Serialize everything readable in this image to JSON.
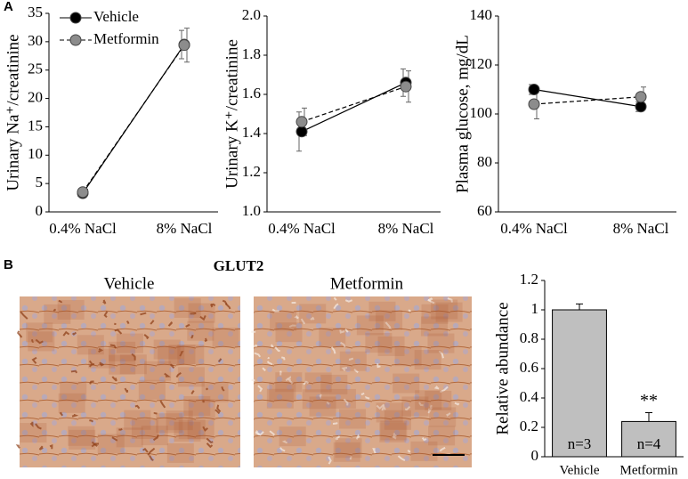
{
  "panels": {
    "a": "A",
    "b": "B"
  },
  "images": {
    "title": "GLUT2",
    "captions": [
      "Vehicle",
      "Metformin"
    ]
  },
  "chart_data": [
    {
      "type": "line",
      "ylabel": "Urinary Na⁺/creatinine",
      "categories": [
        "0.4% NaCl",
        "8% NaCl"
      ],
      "series": [
        {
          "name": "Vehicle",
          "color": "#000000",
          "line_style": "solid",
          "values": [
            3.3,
            29.5
          ],
          "errors": [
            0.5,
            2.5
          ]
        },
        {
          "name": "Metformin",
          "color": "#8c8c8c",
          "line_style": "dashed",
          "values": [
            3.5,
            29.4
          ],
          "errors": [
            0.5,
            3.0
          ]
        }
      ],
      "ylim": [
        0,
        35
      ],
      "yticks": [
        0,
        5,
        10,
        15,
        20,
        25,
        30,
        35
      ],
      "legend": "upper left"
    },
    {
      "type": "line",
      "ylabel": "Urinary K⁺/creatinine",
      "categories": [
        "0.4% NaCl",
        "8% NaCl"
      ],
      "series": [
        {
          "name": "Vehicle",
          "color": "#000000",
          "line_style": "solid",
          "values": [
            1.41,
            1.66
          ],
          "errors": [
            0.1,
            0.07
          ]
        },
        {
          "name": "Metformin",
          "color": "#8c8c8c",
          "line_style": "dashed",
          "values": [
            1.46,
            1.64
          ],
          "errors": [
            0.07,
            0.08
          ]
        }
      ],
      "ylim": [
        1.0,
        2.0
      ],
      "yticks": [
        {
          "value": 1.0,
          "label": "1.0"
        },
        1.2,
        1.4,
        1.6,
        1.8,
        {
          "value": 2.0,
          "label": "2.0"
        }
      ]
    },
    {
      "type": "line",
      "ylabel": "Plasma glucose, mg/dL",
      "categories": [
        "0.4% NaCl",
        "8% NaCl"
      ],
      "series": [
        {
          "name": "Vehicle",
          "color": "#000000",
          "line_style": "solid",
          "values": [
            110,
            103
          ],
          "errors": [
            2,
            2
          ]
        },
        {
          "name": "Metformin",
          "color": "#8c8c8c",
          "line_style": "dashed",
          "values": [
            104,
            107
          ],
          "errors": [
            6,
            4
          ]
        }
      ],
      "ylim": [
        60,
        140
      ],
      "yticks": [
        60,
        80,
        100,
        120,
        140
      ]
    },
    {
      "type": "bar",
      "ylabel": "Relative abundance",
      "categories": [
        "Vehicle",
        "Metformin"
      ],
      "values": [
        1,
        0.24
      ],
      "errors": [
        0.04,
        0.06
      ],
      "color": "#bfbfbf",
      "bar_labels": [
        "n=3",
        "n=4"
      ],
      "annotations": [
        {
          "category": "Metformin",
          "text": "**"
        }
      ],
      "ylim": [
        0,
        1.2
      ],
      "yticks": [
        0,
        0.2,
        0.4,
        0.6,
        0.8,
        1,
        1.2
      ]
    }
  ]
}
